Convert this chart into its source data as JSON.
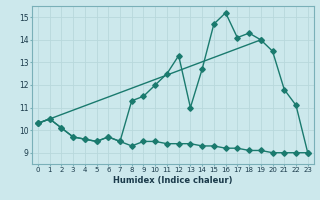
{
  "xlabel": "Humidex (Indice chaleur)",
  "background_color": "#cce8ec",
  "grid_color": "#b8d8dc",
  "line_color": "#1a7a6e",
  "xlim": [
    -0.5,
    23.5
  ],
  "ylim": [
    8.5,
    15.5
  ],
  "yticks": [
    9,
    10,
    11,
    12,
    13,
    14,
    15
  ],
  "xticks": [
    0,
    1,
    2,
    3,
    4,
    5,
    6,
    7,
    8,
    9,
    10,
    11,
    12,
    13,
    14,
    15,
    16,
    17,
    18,
    19,
    20,
    21,
    22,
    23
  ],
  "series_flat_x": [
    0,
    1,
    2,
    3,
    4,
    5,
    6,
    7,
    8,
    9,
    10,
    11,
    12,
    13,
    14,
    15,
    16,
    17,
    18,
    19,
    20,
    21,
    22,
    23
  ],
  "series_flat_y": [
    10.3,
    10.5,
    10.1,
    9.7,
    9.6,
    9.5,
    9.7,
    9.5,
    9.3,
    9.5,
    9.5,
    9.4,
    9.4,
    9.4,
    9.3,
    9.3,
    9.2,
    9.2,
    9.1,
    9.1,
    9.0,
    9.0,
    9.0,
    9.0
  ],
  "series_main_x": [
    0,
    1,
    2,
    3,
    4,
    5,
    6,
    7,
    8,
    9,
    10,
    11,
    12,
    13,
    14,
    15,
    16,
    17,
    18,
    19,
    20,
    21,
    22,
    23
  ],
  "series_main_y": [
    10.3,
    10.5,
    10.1,
    9.7,
    9.6,
    9.5,
    9.7,
    9.5,
    11.3,
    11.5,
    12.0,
    12.5,
    13.3,
    11.0,
    12.7,
    14.7,
    15.2,
    14.1,
    14.3,
    14.0,
    13.5,
    11.8,
    11.1,
    9.0
  ],
  "series_trend_x": [
    0,
    19
  ],
  "series_trend_y": [
    10.3,
    14.0
  ],
  "markersize": 2.8,
  "linewidth": 1.0
}
